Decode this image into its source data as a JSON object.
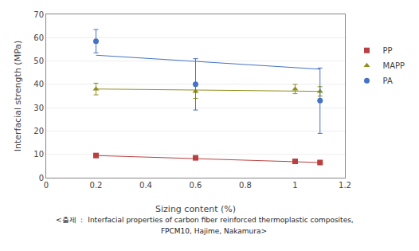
{
  "chart_data": {
    "type": "scatter",
    "x_label": "Sizing content (%)",
    "y_label": "Interfacial strength (MPa)",
    "annotations": [
      "<출제 ： Interfacial properties of carbon fiber reinforced thermoplastic composites,",
      "        FPCM10, Hajime, Nakamura>"
    ],
    "xlim": [
      0,
      1.2
    ],
    "ylim": [
      0,
      70
    ],
    "xticks": [
      0,
      0.2,
      0.4,
      0.6,
      0.8,
      1,
      1.2
    ],
    "yticks": [
      0,
      10,
      20,
      30,
      40,
      50,
      60,
      70
    ],
    "grid": "y",
    "legend": "right",
    "series": [
      {
        "name": "PP",
        "color": "#b94040",
        "marker": "square",
        "x": [
          0.2,
          0.6,
          1.0,
          1.1
        ],
        "values": [
          9.5,
          8.5,
          7.0,
          6.5
        ],
        "errors": [
          0.5,
          0.5,
          0.5,
          0.5
        ],
        "trend": {
          "x": [
            0.2,
            1.1
          ],
          "values": [
            9.5,
            6.5
          ]
        }
      },
      {
        "name": "MAPP",
        "color": "#909020",
        "marker": "triangle-up",
        "x": [
          0.2,
          0.6,
          1.0,
          1.1
        ],
        "values": [
          38.0,
          37.0,
          38.0,
          37.0
        ],
        "errors": [
          2.5,
          3.0,
          2.0,
          2.0
        ],
        "trend": {
          "x": [
            0.2,
            1.1
          ],
          "values": [
            38.0,
            37.0
          ]
        }
      },
      {
        "name": "PA",
        "color": "#4472c4",
        "marker": "circle",
        "x": [
          0.2,
          0.6,
          1.1
        ],
        "values": [
          58.5,
          40.0,
          33.0
        ],
        "errors": [
          5.0,
          11.0,
          14.0
        ],
        "trend": {
          "x": [
            0.2,
            1.1
          ],
          "values": [
            52.5,
            46.5
          ]
        }
      }
    ]
  }
}
